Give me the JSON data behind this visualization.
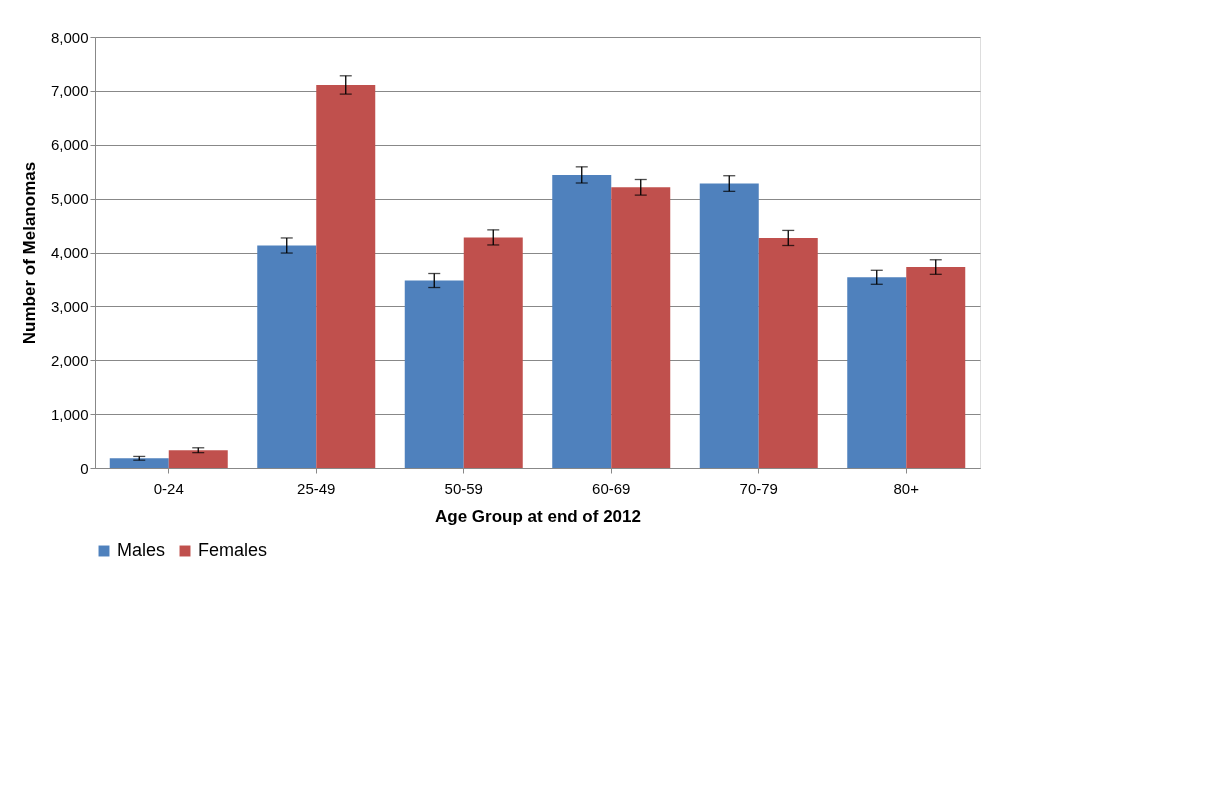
{
  "chart_data": {
    "type": "bar",
    "xlabel": "Age Group at end of 2012",
    "ylabel": "Number of Melanomas",
    "categories": [
      "0-24",
      "25-49",
      "50-59",
      "60-69",
      "70-79",
      "80+"
    ],
    "series": [
      {
        "name": "Males",
        "color": "#4f81bd",
        "values": [
          180,
          4130,
          3480,
          5440,
          5280,
          3540
        ],
        "errors": [
          35,
          140,
          130,
          150,
          145,
          130
        ]
      },
      {
        "name": "Females",
        "color": "#c0504d",
        "values": [
          330,
          7110,
          4280,
          5210,
          4270,
          3730
        ],
        "errors": [
          45,
          170,
          140,
          145,
          140,
          135
        ]
      }
    ],
    "ylim": [
      0,
      8000
    ],
    "yticks": [
      0,
      {
        "value": 1000,
        "label": "1,000"
      },
      {
        "value": 2000,
        "label": "2,000"
      },
      {
        "value": 3000,
        "label": "3,000"
      },
      {
        "value": 4000,
        "label": "4,000"
      },
      {
        "value": 5000,
        "label": "5,000"
      },
      {
        "value": 6000,
        "label": "6,000"
      },
      {
        "value": 7000,
        "label": "7,000"
      },
      {
        "value": 8000,
        "label": "8,000"
      }
    ],
    "grid": "y",
    "legend": "bottom"
  }
}
